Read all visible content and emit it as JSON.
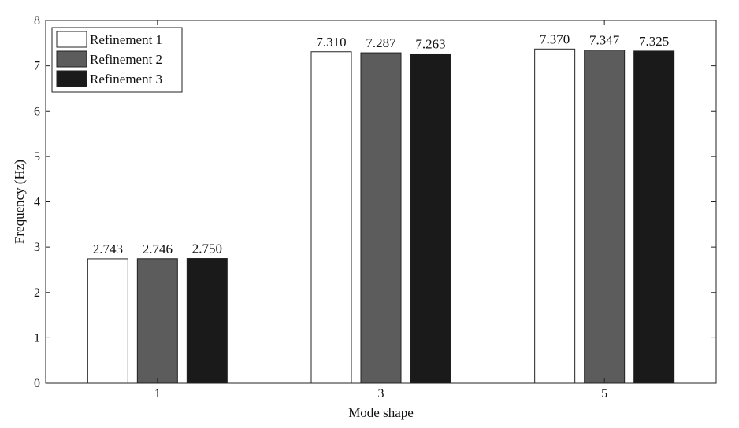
{
  "chart_data": {
    "type": "bar",
    "categories": [
      "1",
      "3",
      "5"
    ],
    "series": [
      {
        "name": "Refinement 1",
        "values": [
          2.743,
          7.31,
          7.37
        ],
        "labels": [
          "2.743",
          "7.310",
          "7.370"
        ],
        "color": "#ffffff"
      },
      {
        "name": "Refinement 2",
        "values": [
          2.746,
          7.287,
          7.347
        ],
        "labels": [
          "2.746",
          "7.287",
          "7.347"
        ],
        "color": "#5c5c5c"
      },
      {
        "name": "Refinement 3",
        "values": [
          2.75,
          7.263,
          7.325
        ],
        "labels": [
          "2.750",
          "7.263",
          "7.325"
        ],
        "color": "#1a1a1a"
      }
    ],
    "xlabel": "Mode shape",
    "ylabel": "Frequency (Hz)",
    "ylim": [
      0,
      8
    ],
    "yticks": [
      "0",
      "1",
      "2",
      "3",
      "4",
      "5",
      "6",
      "7",
      "8"
    ],
    "grid": false,
    "legend_position": "top-left"
  }
}
